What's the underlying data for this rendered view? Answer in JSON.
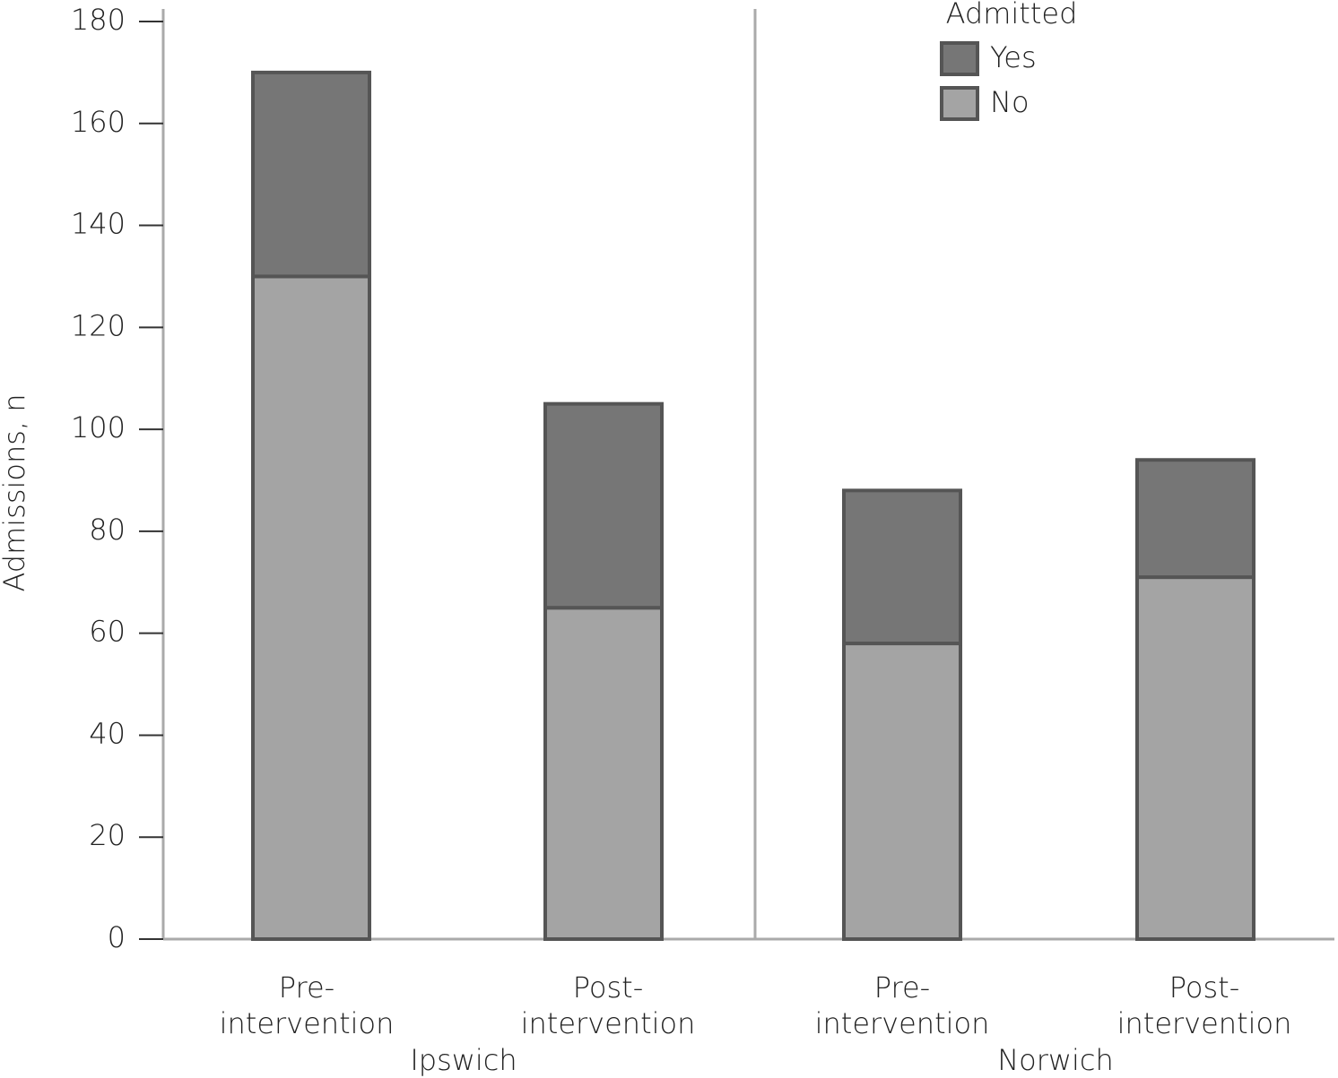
{
  "chart_data": {
    "type": "stacked_bar",
    "y_label": "Admissions, n",
    "categories": [
      "Pre-\nintervention",
      "Post-\nintervention",
      "Pre-\nintervention",
      "Post-\nintervention"
    ],
    "groups": [
      "Ipswich",
      "Norwich"
    ],
    "legend_title": "Admitted",
    "series": [
      {
        "name": "No",
        "color": "#a4a4a4",
        "values": [
          130,
          65,
          58,
          71
        ]
      },
      {
        "name": "Yes",
        "color": "#767676",
        "values": [
          40,
          40,
          30,
          23
        ]
      }
    ],
    "ylim": [
      0,
      180
    ],
    "yticks": [
      0,
      20,
      40,
      60,
      80,
      100,
      120,
      140,
      160,
      180
    ]
  }
}
